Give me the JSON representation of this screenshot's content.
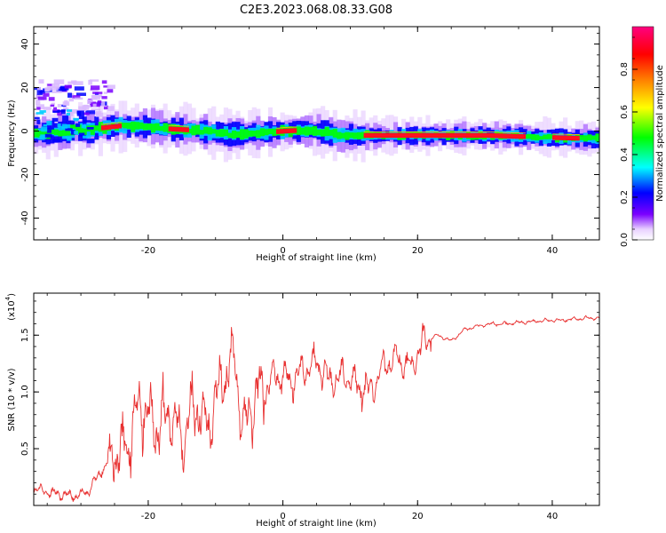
{
  "title": "C2E3.2023.068.08.33.G08",
  "chart_data": [
    {
      "type": "heatmap",
      "xlabel": "Height of straight line (km)",
      "ylabel": "Frequency (Hz)",
      "xlim": [
        -37,
        47
      ],
      "ylim": [
        -50,
        48
      ],
      "xticks": [
        -20,
        0,
        20,
        40
      ],
      "yticks": [
        -40,
        -20,
        0,
        20,
        40
      ],
      "colorbar": {
        "label": "Normalized spectral amplitude",
        "range": [
          0,
          1
        ],
        "ticks": [
          0.0,
          0.2,
          0.4,
          0.6,
          0.8
        ],
        "colors": [
          "#ffffff",
          "#7b00ff",
          "#0000ff",
          "#00ffff",
          "#00ff00",
          "#ffff00",
          "#ff8000",
          "#ff0000",
          "#ff0080"
        ]
      },
      "ridge_frequency": {
        "x": [
          -37,
          -33,
          -30,
          -27,
          -24,
          -20,
          -17,
          -14,
          -11,
          -8,
          -5,
          -2,
          0,
          3,
          6,
          8,
          10,
          12,
          15,
          20,
          25,
          30,
          35,
          40,
          46
        ],
        "y": [
          -1,
          -0.5,
          0.5,
          1.5,
          2.5,
          2,
          1,
          0.5,
          -0.5,
          -1.5,
          -1,
          -0.5,
          0,
          0.5,
          -0.5,
          -2,
          -2,
          -2,
          -2,
          -2,
          -2,
          -2,
          -2.5,
          -3,
          -3.5
        ]
      },
      "scatter_patch": {
        "x_range": [
          -37,
          -26
        ],
        "y_range": [
          8,
          24
        ]
      }
    },
    {
      "type": "line",
      "xlabel": "Height of straight line (km)",
      "ylabel": "SNR (10 * v/v)",
      "exponent_label": "(x10",
      "exponent_power": "4",
      "exponent_close": ")",
      "xlim": [
        -37,
        47
      ],
      "ylim": [
        0.0,
        1.87
      ],
      "xticks": [
        -20,
        0,
        20,
        40
      ],
      "yticks": [
        0.5,
        1.0,
        1.5
      ],
      "color": "#e83030",
      "series": [
        {
          "x": [
            -37,
            -35,
            -33,
            -31,
            -29,
            -27,
            -25,
            -23,
            -21,
            -19,
            -17,
            -15,
            -13,
            -11,
            -9,
            -7,
            -6,
            -5,
            -3,
            -1,
            1,
            3,
            5,
            7,
            9,
            11,
            13,
            15,
            17,
            19,
            21,
            23,
            25,
            27,
            29,
            31,
            33,
            35,
            37,
            39,
            41,
            43,
            45,
            47
          ],
          "y": [
            0.15,
            0.12,
            0.1,
            0.08,
            0.12,
            0.3,
            0.45,
            0.55,
            0.9,
            0.7,
            0.8,
            0.6,
            0.9,
            0.7,
            1.1,
            1.3,
            0.6,
            0.85,
            1.05,
            1.15,
            1.1,
            1.2,
            1.25,
            1.1,
            1.15,
            1.05,
            1.0,
            1.25,
            1.3,
            1.2,
            1.45,
            1.5,
            1.45,
            1.55,
            1.58,
            1.6,
            1.6,
            1.61,
            1.62,
            1.63,
            1.63,
            1.64,
            1.65,
            1.65
          ]
        }
      ]
    }
  ]
}
